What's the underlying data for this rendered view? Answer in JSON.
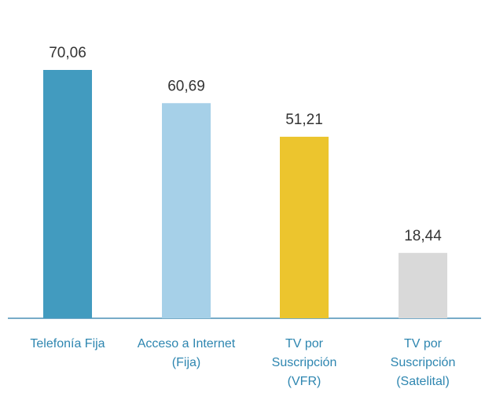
{
  "chart_data": {
    "type": "bar",
    "categories": [
      "Telefonía Fija",
      "Acceso a Internet (Fija)",
      "TV por Suscripción (VFR)",
      "TV por Suscripción (Satelital)"
    ],
    "values": [
      70.06,
      60.69,
      51.21,
      18.44
    ],
    "value_labels": [
      "70,06",
      "60,69",
      "51,21",
      "18,44"
    ],
    "colors": [
      "#429bbf",
      "#a6d0e8",
      "#ecc52e",
      "#d9d9d9"
    ]
  }
}
